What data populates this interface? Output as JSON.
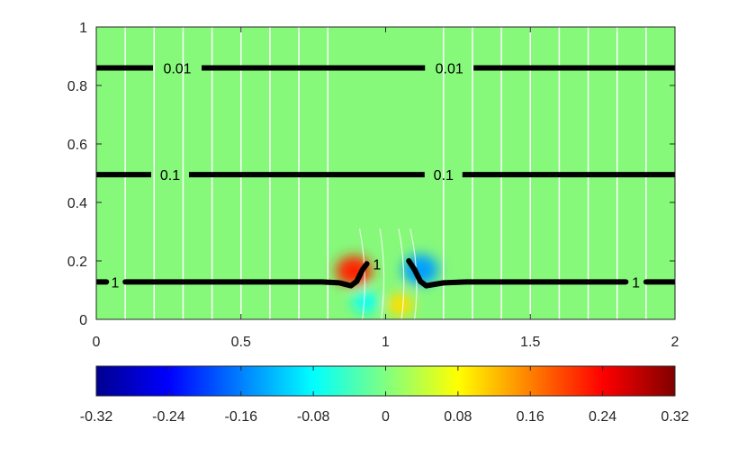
{
  "chart_data": {
    "type": "heatmap",
    "xlim": [
      0,
      2
    ],
    "ylim": [
      0,
      1
    ],
    "x_ticks": [
      "0",
      "0.5",
      "1",
      "1.5",
      "2"
    ],
    "x_tick_values": [
      0,
      0.5,
      1,
      1.5,
      2
    ],
    "y_ticks": [
      "0",
      "0.2",
      "0.4",
      "0.6",
      "0.8",
      "1"
    ],
    "y_tick_values": [
      0,
      0.2,
      0.4,
      0.6,
      0.8,
      1
    ],
    "background_color": "#86f97b",
    "colormap": "jet",
    "colorbar": {
      "orientation": "horizontal",
      "location": "bottom",
      "range": [
        -0.32,
        0.32
      ],
      "tick_labels": [
        "-0.32",
        "-0.24",
        "-0.16",
        "-0.08",
        "0",
        "0.08",
        "0.16",
        "0.24",
        "0.32"
      ],
      "tick_values": [
        -0.32,
        -0.24,
        -0.16,
        -0.08,
        0,
        0.08,
        0.16,
        0.24,
        0.32
      ]
    },
    "blobs": [
      {
        "x": 0.89,
        "y": 0.165,
        "value": 0.22
      },
      {
        "x": 0.93,
        "y": 0.06,
        "value": -0.07
      },
      {
        "x": 1.12,
        "y": 0.17,
        "value": -0.14
      },
      {
        "x": 1.05,
        "y": 0.05,
        "value": 0.1
      }
    ],
    "white_vertical_lines_x": [
      0.1,
      0.2,
      0.3,
      0.4,
      0.5,
      0.6,
      0.7,
      0.8,
      1.2,
      1.3,
      1.4,
      1.5,
      1.6,
      1.7,
      1.8,
      1.9
    ],
    "black_contours": [
      {
        "level": "0.01",
        "y": 0.86,
        "labels": [
          {
            "text": "0.01",
            "x": 0.28
          },
          {
            "text": "0.01",
            "x": 1.22
          }
        ]
      },
      {
        "level": "0.1",
        "y": 0.495,
        "labels": [
          {
            "text": "0.1",
            "x": 0.255
          },
          {
            "text": "0.1",
            "x": 1.2
          }
        ]
      },
      {
        "level": "1",
        "points_left": [
          [
            0.1,
            0.128
          ],
          [
            0.78,
            0.128
          ],
          [
            0.84,
            0.125
          ],
          [
            0.88,
            0.115
          ],
          [
            0.9,
            0.13
          ],
          [
            0.92,
            0.17
          ],
          [
            0.935,
            0.19
          ]
        ],
        "points_right": [
          [
            1.08,
            0.2
          ],
          [
            1.1,
            0.17
          ],
          [
            1.12,
            0.13
          ],
          [
            1.14,
            0.115
          ],
          [
            1.2,
            0.125
          ],
          [
            1.28,
            0.128
          ],
          [
            1.83,
            0.128
          ]
        ],
        "edge_left": [
          [
            0,
            0.128
          ],
          [
            0.035,
            0.128
          ]
        ],
        "edge_right": [
          [
            1.9,
            0.128
          ],
          [
            2,
            0.128
          ]
        ],
        "labels": [
          {
            "text": "1",
            "x": 0.065,
            "y": 0.128
          },
          {
            "text": "1",
            "x": 0.97,
            "y": 0.19
          },
          {
            "text": "1",
            "x": 1.865,
            "y": 0.128
          }
        ]
      }
    ]
  }
}
